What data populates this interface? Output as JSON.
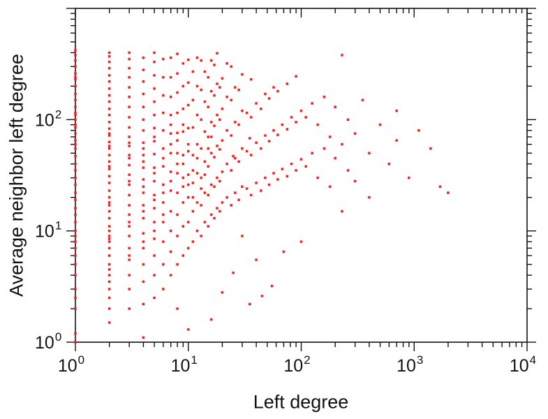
{
  "chart_data": {
    "type": "scatter",
    "title": "",
    "xlabel": "Left degree",
    "ylabel": "Average neighbor left degree",
    "xlim": [
      1,
      10000
    ],
    "ylim": [
      1,
      1000
    ],
    "x_scale": "log",
    "y_scale": "log",
    "x_tick_exponents": [
      0,
      1,
      2,
      3,
      4
    ],
    "x_label_exponents": [
      0,
      1,
      2,
      3,
      4
    ],
    "y_tick_exponents": [
      0,
      1,
      2,
      3
    ],
    "y_label_exponents": [
      0,
      1,
      2
    ],
    "tick_label_base": "10",
    "grid": false,
    "legend": "none",
    "marker": {
      "shape": "square",
      "color": "#ff1a1a",
      "size": 3.5
    },
    "axis_color": "#111111",
    "background_color": "#ffffff",
    "points": [
      [
        1,
        [
          1,
          1.2,
          2,
          2.5,
          3,
          4,
          5,
          6,
          7,
          8,
          9,
          10,
          12,
          14,
          16,
          19,
          22,
          26,
          30,
          35,
          40,
          47,
          55,
          60,
          65,
          75,
          85,
          90,
          100,
          110,
          115,
          130,
          150,
          170,
          200,
          230,
          240,
          260,
          300,
          340,
          380,
          420
        ]
      ],
      [
        2,
        [
          1.5,
          2,
          2.5,
          3,
          3.5,
          4,
          4.5,
          5,
          6,
          7,
          8,
          8.5,
          9,
          10,
          11,
          13,
          15,
          17,
          18,
          20,
          23,
          27,
          31,
          36,
          38,
          42,
          48,
          55,
          58,
          63,
          72,
          75,
          83,
          95,
          110,
          125,
          145,
          165,
          190,
          220,
          250,
          290,
          330,
          370,
          400
        ]
      ],
      [
        3,
        [
          2,
          3,
          4,
          5.5,
          6,
          7,
          9,
          11,
          12,
          14,
          17,
          21,
          26,
          28,
          32,
          39,
          45,
          48,
          58,
          62,
          70,
          85,
          105,
          130,
          160,
          195,
          240,
          290,
          350,
          400
        ]
      ],
      [
        4,
        [
          1.1,
          2.2,
          3.5,
          5,
          7,
          8,
          9.5,
          13,
          15,
          17,
          22,
          25,
          29,
          37,
          42,
          48,
          55,
          62,
          80,
          100,
          130,
          170,
          220,
          280,
          360
        ]
      ],
      [
        5,
        [
          2.5,
          4,
          6,
          8.5,
          10,
          12,
          16,
          19,
          21,
          28,
          33,
          37,
          49,
          64,
          70,
          84,
          110,
          145,
          190,
          250,
          330,
          400
        ]
      ],
      [
        6,
        [
          3,
          5,
          8,
          12,
          14,
          18,
          22,
          26,
          38,
          45,
          55,
          80,
          115,
          165,
          240,
          350
        ]
      ],
      [
        7,
        [
          4,
          6.5,
          10,
          15,
          23,
          28,
          34,
          50,
          60,
          75,
          90,
          110,
          160,
          240,
          360
        ]
      ],
      [
        8,
        [
          2,
          5,
          9,
          14,
          22,
          33,
          40,
          50,
          65,
          76,
          115,
          175,
          260,
          390
        ]
      ],
      [
        9,
        [
          6,
          11,
          18,
          25,
          30,
          40,
          48,
          78,
          90,
          125,
          200,
          320
        ]
      ],
      [
        10,
        [
          1.3,
          7,
          12,
          20,
          26,
          32,
          52,
          60,
          84,
          135,
          215,
          345
        ]
      ],
      [
        11,
        [
          8,
          15,
          20,
          27,
          35,
          48,
          85,
          150,
          270
        ]
      ],
      [
        12,
        [
          10,
          18,
          33,
          45,
          60,
          110,
          200,
          360
        ]
      ],
      [
        13,
        [
          9,
          17,
          24,
          30,
          55,
          100,
          185,
          340
        ]
      ],
      [
        14,
        [
          12,
          22,
          32,
          42,
          78,
          145,
          270
        ]
      ],
      [
        15,
        [
          11,
          21,
          38,
          55,
          70,
          130,
          240
        ]
      ],
      [
        16,
        [
          1.6,
          14,
          26,
          50,
          70,
          95,
          180,
          340
        ]
      ],
      [
        17,
        [
          13,
          25,
          46,
          88,
          165,
          310
        ]
      ],
      [
        18,
        [
          16,
          30,
          58,
          110,
          210,
          395
        ]
      ],
      [
        19,
        [
          15,
          28,
          54,
          100,
          195
        ]
      ],
      [
        20,
        [
          2.8,
          18,
          34,
          65,
          125,
          235
        ]
      ],
      [
        22,
        [
          20,
          40,
          80,
          160,
          320
        ]
      ],
      [
        24,
        [
          17,
          35,
          72,
          150,
          300
        ]
      ],
      [
        25,
        [
          4.2,
          47
        ]
      ],
      [
        26,
        [
          22,
          45,
          95,
          195
        ]
      ],
      [
        28,
        [
          19,
          42,
          90,
          185
        ]
      ],
      [
        30,
        [
          9,
          25,
          55,
          120,
          255
        ]
      ],
      [
        33,
        [
          24,
          52,
          115
        ]
      ],
      [
        35,
        [
          2.2,
          68
        ]
      ],
      [
        36,
        [
          21,
          48,
          105,
          230
        ]
      ],
      [
        40,
        [
          5.5,
          27,
          62,
          140
        ]
      ],
      [
        44,
        [
          23,
          55,
          125
        ]
      ],
      [
        45,
        [
          2.6
        ]
      ],
      [
        48,
        [
          30,
          72,
          170
        ]
      ],
      [
        52,
        [
          26,
          64,
          155
        ]
      ],
      [
        55,
        [
          3.2
        ]
      ],
      [
        57,
        [
          33,
          80,
          195
        ]
      ],
      [
        62,
        [
          29,
          73,
          180
        ]
      ],
      [
        68,
        [
          36,
          90
        ]
      ],
      [
        70,
        [
          6.5
        ]
      ],
      [
        75,
        [
          31,
          82,
          210
        ]
      ],
      [
        82,
        [
          40,
          105
        ]
      ],
      [
        90,
        [
          35,
          95,
          245
        ]
      ],
      [
        100,
        [
          8,
          44,
          120
        ]
      ],
      [
        110,
        [
          38,
          105
        ]
      ],
      [
        125,
        [
          50,
          140
        ]
      ],
      [
        140,
        [
          30,
          90
        ]
      ],
      [
        160,
        [
          55,
          160
        ]
      ],
      [
        180,
        [
          25,
          70
        ]
      ],
      [
        200,
        [
          45,
          130
        ]
      ],
      [
        230,
        [
          15,
          60,
          380
        ]
      ],
      [
        260,
        [
          35,
          100
        ]
      ],
      [
        300,
        [
          28,
          75
        ]
      ],
      [
        350,
        [
          150
        ]
      ],
      [
        400,
        [
          20,
          50
        ]
      ],
      [
        500,
        [
          90
        ]
      ],
      [
        600,
        [
          40
        ]
      ],
      [
        700,
        [
          65,
          120
        ]
      ],
      [
        900,
        [
          30
        ]
      ],
      [
        1100,
        [
          80
        ]
      ],
      [
        1400,
        [
          55
        ]
      ],
      [
        1700,
        [
          25
        ]
      ],
      [
        2000,
        [
          22
        ]
      ]
    ]
  }
}
